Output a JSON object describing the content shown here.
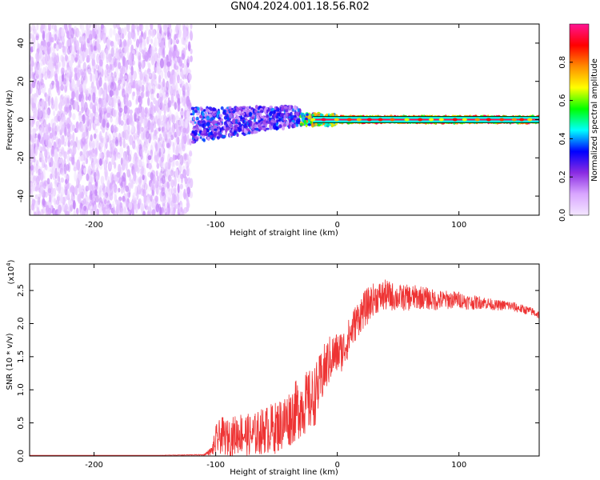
{
  "figure_title": "GN04.2024.001.18.56.R02",
  "colors": {
    "snr_line": "#ee3333",
    "colormap": [
      "#f3e6ff",
      "#d9a6ff",
      "#8a2be2",
      "#0000ff",
      "#00ffff",
      "#00ff00",
      "#ffff00",
      "#ff8c00",
      "#ff0000",
      "#ff1493"
    ]
  },
  "chart_data": [
    {
      "type": "heatmap",
      "title": "",
      "xlabel": "Height of straight line (km)",
      "ylabel": "Frequency (Hz)",
      "xlim": [
        -253,
        166
      ],
      "ylim": [
        -50,
        50
      ],
      "x_ticks": [
        -200,
        -100,
        0,
        100
      ],
      "x_tick_labels": [
        "-200",
        "-100",
        "0",
        "100"
      ],
      "y_ticks": [
        -40,
        -20,
        0,
        20,
        40
      ],
      "y_tick_labels": [
        "-40",
        "-20",
        "0",
        "20",
        "40"
      ],
      "grid": false,
      "colorbar": {
        "label": "Normalized spectral amplitude",
        "range": [
          0,
          1
        ],
        "ticks": [
          0.0,
          0.2,
          0.4,
          0.6,
          0.8
        ],
        "tick_labels": [
          "0.0",
          "0.2",
          "0.4",
          "0.6",
          "0.8"
        ]
      },
      "regions": [
        {
          "x_range": [
            -253,
            -120
          ],
          "freq_range": [
            -50,
            50
          ],
          "amplitude_range": [
            0.0,
            0.15
          ],
          "description": "noise"
        },
        {
          "x_range": [
            -120,
            -30
          ],
          "freq_range": [
            -12,
            8
          ],
          "amplitude_range": [
            0.1,
            0.4
          ]
        },
        {
          "x_range": [
            -30,
            0
          ],
          "freq_range": [
            -3,
            3
          ],
          "amplitude_range": [
            0.3,
            0.8
          ]
        },
        {
          "x_range": [
            0,
            166
          ],
          "freq_range": [
            -1.5,
            1.5
          ],
          "amplitude_range": [
            0.5,
            1.0
          ]
        }
      ]
    },
    {
      "type": "line",
      "title": "",
      "xlabel": "Height of straight line (km)",
      "ylabel": "SNR (10 * v/v)",
      "y_multiplier_label": "(x10",
      "y_multiplier_exp": "4",
      "y_multiplier_close": ")",
      "xlim": [
        -253,
        166
      ],
      "ylim": [
        0,
        2.9
      ],
      "x_ticks": [
        -200,
        -100,
        0,
        100
      ],
      "x_tick_labels": [
        "-200",
        "-100",
        "0",
        "100"
      ],
      "y_ticks": [
        0.0,
        0.5,
        1.0,
        1.5,
        2.0,
        2.5
      ],
      "y_tick_labels": [
        "0.0",
        "0.5",
        "1.0",
        "1.5",
        "2.0",
        "2.5"
      ],
      "grid": false,
      "series": [
        {
          "x": [
            -253,
            -200,
            -150,
            -110,
            -103,
            -100,
            -95,
            -90,
            -80,
            -70,
            -60,
            -50,
            -40,
            -30,
            -20,
            -15,
            -10,
            -5,
            0,
            5,
            10,
            15,
            20,
            25,
            30,
            40,
            50,
            60,
            70,
            80,
            90,
            100,
            110,
            120,
            130,
            140,
            150,
            160,
            166
          ],
          "y": [
            0.01,
            0.01,
            0.01,
            0.02,
            0.1,
            0.3,
            0.4,
            0.35,
            0.45,
            0.4,
            0.5,
            0.55,
            0.7,
            0.9,
            1.0,
            1.2,
            1.45,
            1.6,
            1.65,
            1.7,
            1.9,
            2.1,
            2.25,
            2.35,
            2.45,
            2.5,
            2.45,
            2.45,
            2.45,
            2.4,
            2.4,
            2.4,
            2.35,
            2.35,
            2.3,
            2.3,
            2.25,
            2.2,
            2.15
          ],
          "noise": [
            0.0,
            0.0,
            0.0,
            0.01,
            0.08,
            0.3,
            0.35,
            0.35,
            0.4,
            0.4,
            0.45,
            0.5,
            0.55,
            0.6,
            0.6,
            0.55,
            0.5,
            0.45,
            0.4,
            0.4,
            0.35,
            0.35,
            0.35,
            0.35,
            0.3,
            0.3,
            0.25,
            0.25,
            0.22,
            0.2,
            0.18,
            0.16,
            0.14,
            0.12,
            0.1,
            0.1,
            0.09,
            0.08,
            0.08
          ]
        }
      ]
    }
  ]
}
